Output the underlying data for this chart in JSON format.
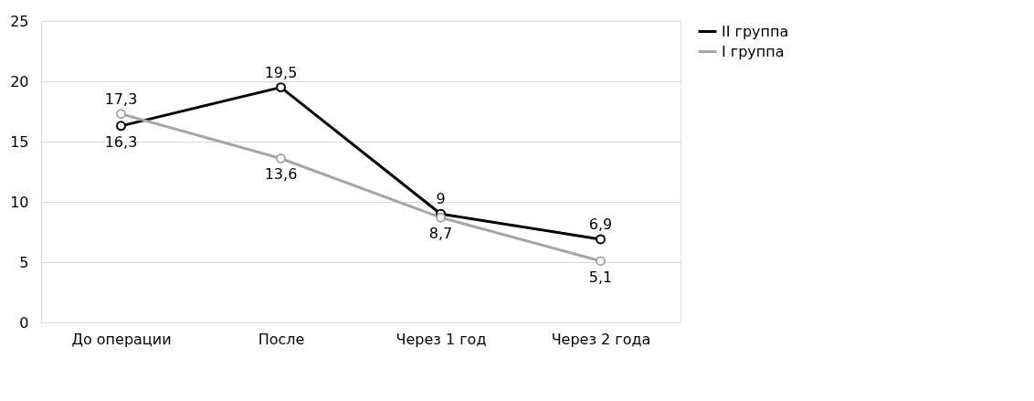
{
  "chart_data": {
    "type": "line",
    "categories": [
      "До операции",
      "После",
      "Через 1 год",
      "Через 2 года"
    ],
    "series": [
      {
        "name": "II группа",
        "color": "#000000",
        "values": [
          16.3,
          19.5,
          9,
          6.9
        ],
        "value_labels": [
          "16,3",
          "19,5",
          "9",
          "6,9"
        ]
      },
      {
        "name": "I группа",
        "color": "#a6a6a6",
        "values": [
          17.3,
          13.6,
          8.7,
          5.1
        ],
        "value_labels": [
          "17,3",
          "13,6",
          "8,7",
          "5,1"
        ]
      }
    ],
    "ylim": [
      0,
      25
    ],
    "yticks": [
      0,
      5,
      10,
      15,
      20,
      25
    ],
    "grid": "y",
    "legend": "right",
    "marker": "circle",
    "line_style": "solid",
    "data_labels": true
  }
}
